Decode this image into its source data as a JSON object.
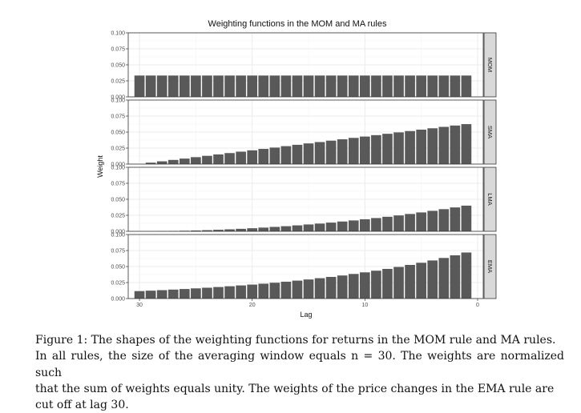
{
  "chart_data": {
    "type": "bar",
    "title": "Weighting functions in the MOM and MA rules",
    "xlabel": "Lag",
    "ylabel": "Weight",
    "xlim": [
      31,
      -0.5
    ],
    "x_ticks": [
      30,
      20,
      10,
      0
    ],
    "x_tick_labels": [
      "30",
      "20",
      "10",
      "0"
    ],
    "ylim": [
      0,
      0.1
    ],
    "y_ticks": [
      0,
      0.025,
      0.05,
      0.075,
      0.1
    ],
    "y_tick_labels": [
      "0.000",
      "0.025",
      "0.050",
      "0.075",
      "0.100"
    ],
    "lags": [
      30,
      29,
      28,
      27,
      26,
      25,
      24,
      23,
      22,
      21,
      20,
      19,
      18,
      17,
      16,
      15,
      14,
      13,
      12,
      11,
      10,
      9,
      8,
      7,
      6,
      5,
      4,
      3,
      2,
      1
    ],
    "series": [
      {
        "name": "MOM",
        "values": [
          0.0333,
          0.0333,
          0.0333,
          0.0333,
          0.0333,
          0.0333,
          0.0333,
          0.0333,
          0.0333,
          0.0333,
          0.0333,
          0.0333,
          0.0333,
          0.0333,
          0.0333,
          0.0333,
          0.0333,
          0.0333,
          0.0333,
          0.0333,
          0.0333,
          0.0333,
          0.0333,
          0.0333,
          0.0333,
          0.0333,
          0.0333,
          0.0333,
          0.0333,
          0.0333
        ]
      },
      {
        "name": "SMA",
        "values": [
          0.0,
          0.0022,
          0.0043,
          0.0065,
          0.0086,
          0.0108,
          0.0129,
          0.0151,
          0.0172,
          0.0194,
          0.0215,
          0.0237,
          0.0258,
          0.028,
          0.0301,
          0.0323,
          0.0344,
          0.0366,
          0.0387,
          0.0409,
          0.043,
          0.0452,
          0.0473,
          0.0495,
          0.0516,
          0.0538,
          0.0559,
          0.0581,
          0.0602,
          0.0624
        ]
      },
      {
        "name": "LMA",
        "values": [
          0.0,
          0.0001,
          0.0003,
          0.0006,
          0.0009,
          0.0013,
          0.0018,
          0.0024,
          0.0031,
          0.0039,
          0.0048,
          0.0058,
          0.0069,
          0.008,
          0.0093,
          0.0107,
          0.0121,
          0.0136,
          0.0153,
          0.017,
          0.0188,
          0.0207,
          0.0227,
          0.0248,
          0.0271,
          0.0295,
          0.032,
          0.0346,
          0.0373,
          0.0401
        ]
      },
      {
        "name": "EMA",
        "values": [
          0.0116,
          0.0123,
          0.0131,
          0.014,
          0.0149,
          0.0159,
          0.0169,
          0.018,
          0.0192,
          0.0205,
          0.0218,
          0.0232,
          0.0247,
          0.0263,
          0.028,
          0.0298,
          0.0318,
          0.0338,
          0.036,
          0.0384,
          0.0409,
          0.0435,
          0.0463,
          0.0493,
          0.0525,
          0.0559,
          0.0595,
          0.0634,
          0.0675,
          0.0719
        ]
      }
    ]
  },
  "caption": {
    "lines": [
      "Figure 1:  The shapes of the weighting functions for returns in the MOM rule and MA rules.",
      "In all rules, the size of the averaging window equals n = 30.  The weights are normalized such",
      "that the sum of weights equals unity.  The weights of the price changes in the EMA rule are",
      "cut off at lag 30."
    ]
  },
  "colors": {
    "bar": "#595959",
    "strip": "#d9d9d9",
    "grid_major": "#ebebeb",
    "grid_minor": "#f5f5f5",
    "frame": "#333333"
  }
}
